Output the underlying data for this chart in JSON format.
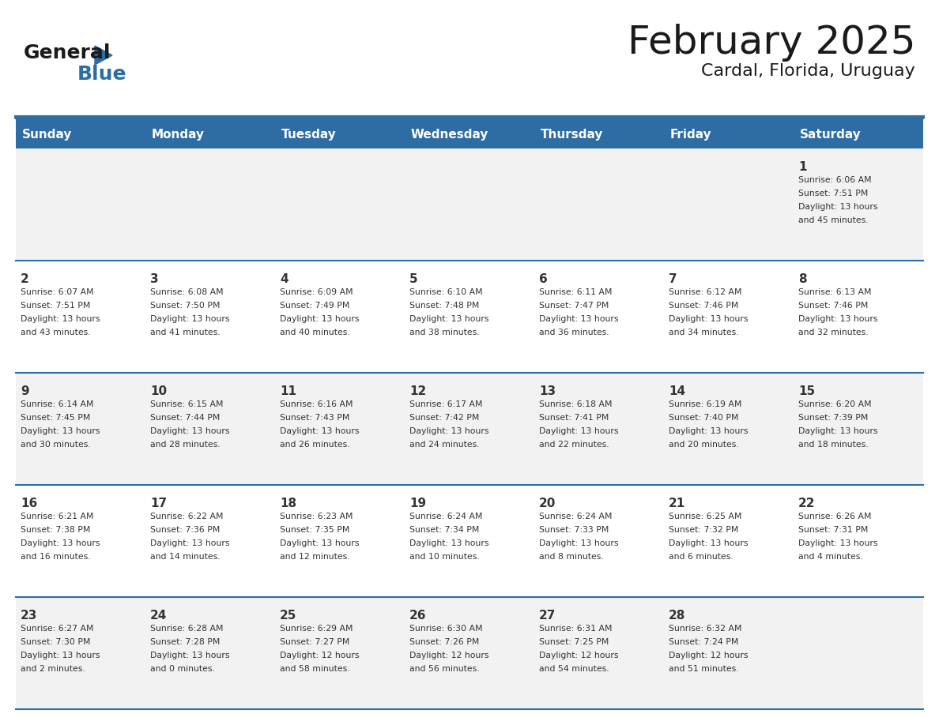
{
  "title": "February 2025",
  "subtitle": "Cardal, Florida, Uruguay",
  "header_bg": "#2E6DA4",
  "header_text_color": "#FFFFFF",
  "cell_bg_light": "#F2F2F2",
  "cell_bg_white": "#FFFFFF",
  "border_color": "#2E6DA4",
  "text_color": "#333333",
  "days_of_week": [
    "Sunday",
    "Monday",
    "Tuesday",
    "Wednesday",
    "Thursday",
    "Friday",
    "Saturday"
  ],
  "calendar_data": [
    [
      {
        "day": "",
        "sunrise": "",
        "sunset": "",
        "daylight_h": "",
        "daylight_m": ""
      },
      {
        "day": "",
        "sunrise": "",
        "sunset": "",
        "daylight_h": "",
        "daylight_m": ""
      },
      {
        "day": "",
        "sunrise": "",
        "sunset": "",
        "daylight_h": "",
        "daylight_m": ""
      },
      {
        "day": "",
        "sunrise": "",
        "sunset": "",
        "daylight_h": "",
        "daylight_m": ""
      },
      {
        "day": "",
        "sunrise": "",
        "sunset": "",
        "daylight_h": "",
        "daylight_m": ""
      },
      {
        "day": "",
        "sunrise": "",
        "sunset": "",
        "daylight_h": "",
        "daylight_m": ""
      },
      {
        "day": "1",
        "sunrise": "6:06 AM",
        "sunset": "7:51 PM",
        "daylight_h": "13",
        "daylight_m": "45"
      }
    ],
    [
      {
        "day": "2",
        "sunrise": "6:07 AM",
        "sunset": "7:51 PM",
        "daylight_h": "13",
        "daylight_m": "43"
      },
      {
        "day": "3",
        "sunrise": "6:08 AM",
        "sunset": "7:50 PM",
        "daylight_h": "13",
        "daylight_m": "41"
      },
      {
        "day": "4",
        "sunrise": "6:09 AM",
        "sunset": "7:49 PM",
        "daylight_h": "13",
        "daylight_m": "40"
      },
      {
        "day": "5",
        "sunrise": "6:10 AM",
        "sunset": "7:48 PM",
        "daylight_h": "13",
        "daylight_m": "38"
      },
      {
        "day": "6",
        "sunrise": "6:11 AM",
        "sunset": "7:47 PM",
        "daylight_h": "13",
        "daylight_m": "36"
      },
      {
        "day": "7",
        "sunrise": "6:12 AM",
        "sunset": "7:46 PM",
        "daylight_h": "13",
        "daylight_m": "34"
      },
      {
        "day": "8",
        "sunrise": "6:13 AM",
        "sunset": "7:46 PM",
        "daylight_h": "13",
        "daylight_m": "32"
      }
    ],
    [
      {
        "day": "9",
        "sunrise": "6:14 AM",
        "sunset": "7:45 PM",
        "daylight_h": "13",
        "daylight_m": "30"
      },
      {
        "day": "10",
        "sunrise": "6:15 AM",
        "sunset": "7:44 PM",
        "daylight_h": "13",
        "daylight_m": "28"
      },
      {
        "day": "11",
        "sunrise": "6:16 AM",
        "sunset": "7:43 PM",
        "daylight_h": "13",
        "daylight_m": "26"
      },
      {
        "day": "12",
        "sunrise": "6:17 AM",
        "sunset": "7:42 PM",
        "daylight_h": "13",
        "daylight_m": "24"
      },
      {
        "day": "13",
        "sunrise": "6:18 AM",
        "sunset": "7:41 PM",
        "daylight_h": "13",
        "daylight_m": "22"
      },
      {
        "day": "14",
        "sunrise": "6:19 AM",
        "sunset": "7:40 PM",
        "daylight_h": "13",
        "daylight_m": "20"
      },
      {
        "day": "15",
        "sunrise": "6:20 AM",
        "sunset": "7:39 PM",
        "daylight_h": "13",
        "daylight_m": "18"
      }
    ],
    [
      {
        "day": "16",
        "sunrise": "6:21 AM",
        "sunset": "7:38 PM",
        "daylight_h": "13",
        "daylight_m": "16"
      },
      {
        "day": "17",
        "sunrise": "6:22 AM",
        "sunset": "7:36 PM",
        "daylight_h": "13",
        "daylight_m": "14"
      },
      {
        "day": "18",
        "sunrise": "6:23 AM",
        "sunset": "7:35 PM",
        "daylight_h": "13",
        "daylight_m": "12"
      },
      {
        "day": "19",
        "sunrise": "6:24 AM",
        "sunset": "7:34 PM",
        "daylight_h": "13",
        "daylight_m": "10"
      },
      {
        "day": "20",
        "sunrise": "6:24 AM",
        "sunset": "7:33 PM",
        "daylight_h": "13",
        "daylight_m": "8"
      },
      {
        "day": "21",
        "sunrise": "6:25 AM",
        "sunset": "7:32 PM",
        "daylight_h": "13",
        "daylight_m": "6"
      },
      {
        "day": "22",
        "sunrise": "6:26 AM",
        "sunset": "7:31 PM",
        "daylight_h": "13",
        "daylight_m": "4"
      }
    ],
    [
      {
        "day": "23",
        "sunrise": "6:27 AM",
        "sunset": "7:30 PM",
        "daylight_h": "13",
        "daylight_m": "2"
      },
      {
        "day": "24",
        "sunrise": "6:28 AM",
        "sunset": "7:28 PM",
        "daylight_h": "13",
        "daylight_m": "0"
      },
      {
        "day": "25",
        "sunrise": "6:29 AM",
        "sunset": "7:27 PM",
        "daylight_h": "12",
        "daylight_m": "58"
      },
      {
        "day": "26",
        "sunrise": "6:30 AM",
        "sunset": "7:26 PM",
        "daylight_h": "12",
        "daylight_m": "56"
      },
      {
        "day": "27",
        "sunrise": "6:31 AM",
        "sunset": "7:25 PM",
        "daylight_h": "12",
        "daylight_m": "54"
      },
      {
        "day": "28",
        "sunrise": "6:32 AM",
        "sunset": "7:24 PM",
        "daylight_h": "12",
        "daylight_m": "51"
      },
      {
        "day": "",
        "sunrise": "",
        "sunset": "",
        "daylight_h": "",
        "daylight_m": ""
      }
    ]
  ],
  "logo_text_general": "General",
  "logo_text_blue": "Blue",
  "logo_color_general": "#1a1a1a",
  "logo_color_blue": "#2E6DA4"
}
